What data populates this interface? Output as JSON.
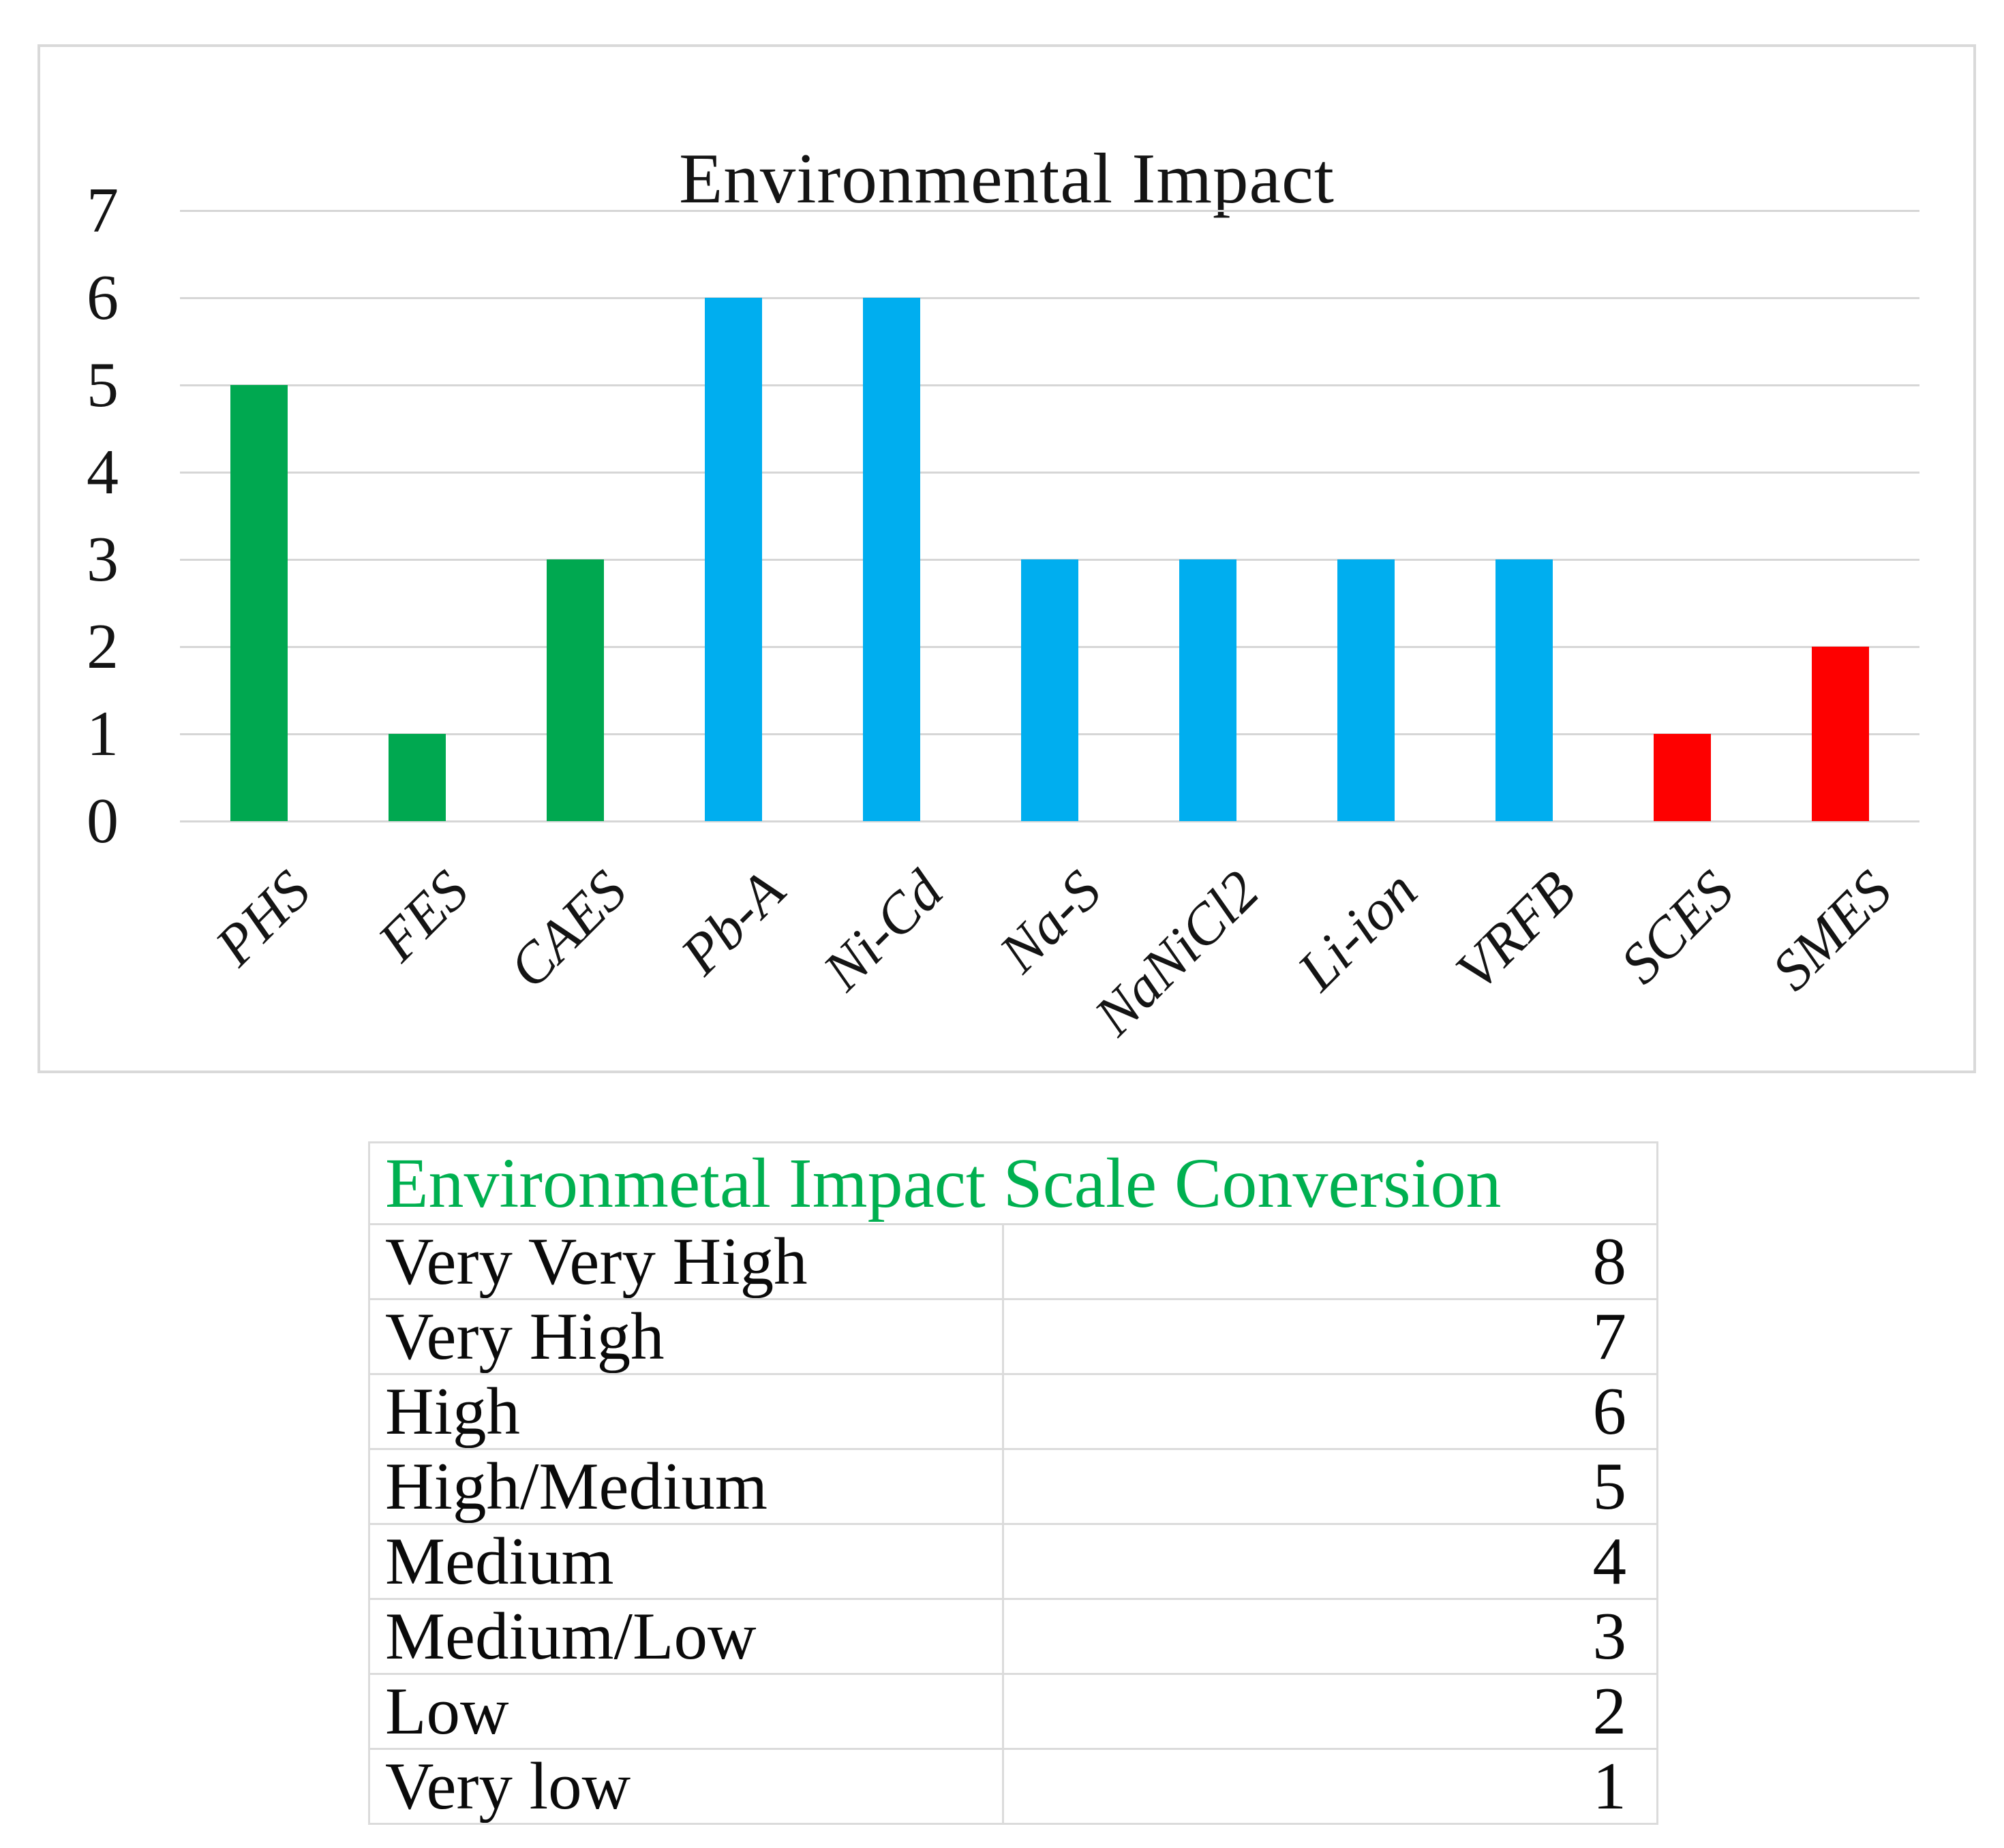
{
  "chart": {
    "title": "Environmental Impact",
    "y_axis_ticks": [
      7,
      6,
      5,
      4,
      3,
      2,
      1,
      0
    ]
  },
  "chart_data": {
    "type": "bar",
    "title": "Environmental Impact",
    "categories": [
      "PHS",
      "FES",
      "CAES",
      "Pb-A",
      "Ni-Cd",
      "Na-S",
      "NaNiCl2",
      "Li-ion",
      "VRFB",
      "SCES",
      "SMES"
    ],
    "values": [
      5,
      1,
      3,
      6,
      6,
      3,
      3,
      3,
      3,
      1,
      2
    ],
    "bar_colors": [
      "#00A850",
      "#00A850",
      "#00A850",
      "#00AEEF",
      "#00AEEF",
      "#00AEEF",
      "#00AEEF",
      "#00AEEF",
      "#00AEEF",
      "#FE0000",
      "#FE0000"
    ],
    "xlabel": "",
    "ylabel": "",
    "ylim": [
      0,
      7
    ],
    "ytick_interval": 1,
    "grid": true,
    "legend": false,
    "x_label_rotation_deg": -45
  },
  "conversion_table": {
    "title": "Environmetal Impact Scale Conversion",
    "title_color": "#00B050",
    "rows": [
      {
        "label": "Very Very High",
        "value": "8"
      },
      {
        "label": "Very High",
        "value": "7"
      },
      {
        "label": "High",
        "value": "6"
      },
      {
        "label": "High/Medium",
        "value": "5"
      },
      {
        "label": "Medium",
        "value": "4"
      },
      {
        "label": "Medium/Low",
        "value": "3"
      },
      {
        "label": "Low",
        "value": "2"
      },
      {
        "label": "Very low",
        "value": "1"
      }
    ]
  },
  "colors": {
    "green_bar": "#00A850",
    "blue_bar": "#00AEEF",
    "red_bar": "#FE0000",
    "gridline": "#d6d6d6",
    "panel_border": "#d9d9d9",
    "table_border": "#dbdbdb",
    "table_title_green": "#00B050",
    "text": "#111111"
  }
}
